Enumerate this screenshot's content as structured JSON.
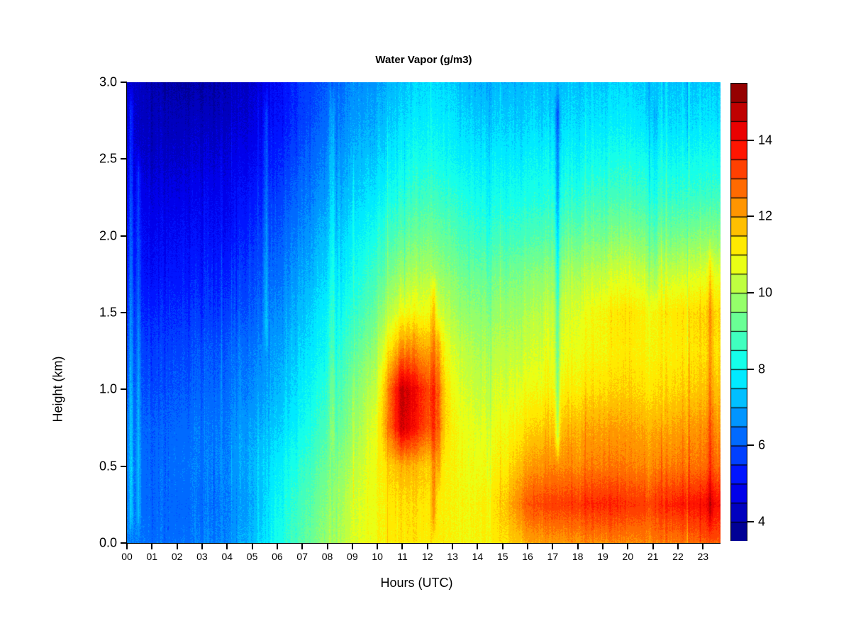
{
  "title": "Water Vapor (g/m3)",
  "x_axis": {
    "title": "Hours (UTC)",
    "tick_labels": [
      "00",
      "01",
      "02",
      "03",
      "04",
      "05",
      "06",
      "07",
      "08",
      "09",
      "10",
      "11",
      "12",
      "13",
      "14",
      "15",
      "16",
      "17",
      "18",
      "19",
      "20",
      "21",
      "22",
      "23"
    ]
  },
  "y_axis": {
    "title": "Height (km)",
    "tick_labels": [
      "0.0",
      "0.5",
      "1.0",
      "1.5",
      "2.0",
      "2.5",
      "3.0"
    ]
  },
  "colorbar": {
    "tick_labels": [
      "4",
      "6",
      "8",
      "10",
      "12",
      "14"
    ],
    "min": 3.5,
    "max": 15.5,
    "step": 0.5,
    "colormap": "jet",
    "border_color": "#000000"
  },
  "chart_data": {
    "type": "heatmap",
    "title": "Water Vapor (g/m3)",
    "xlabel": "Hours (UTC)",
    "ylabel": "Height (km)",
    "x_range_hours": [
      0,
      23.7
    ],
    "y_range_km": [
      0,
      3
    ],
    "value_range": [
      3.5,
      15.5
    ],
    "value_bin_size": 0.5,
    "colormap": "jet",
    "grid": false,
    "legend_position": "right-colorbar",
    "hours": [
      0,
      1,
      2,
      3,
      4,
      5,
      6,
      7,
      8,
      9,
      10,
      11,
      12,
      13,
      14,
      15,
      16,
      17,
      18,
      19,
      20,
      21,
      22,
      23,
      24
    ],
    "heights_km": [
      0,
      0.25,
      0.5,
      0.75,
      1.0,
      1.25,
      1.5,
      1.75,
      2.0,
      2.25,
      2.5,
      2.75,
      3.0
    ],
    "values_g_m3": [
      [
        6.5,
        6.3,
        6.3,
        6.4,
        6.6,
        7.2,
        8.2,
        9.0,
        9.8,
        10.4,
        11.0,
        11.3,
        11.2,
        11.0,
        11.0,
        11.3,
        12.0,
        12.2,
        12.3,
        12.4,
        12.4,
        12.5,
        12.6,
        12.9,
        13.2
      ],
      [
        6.3,
        6.2,
        6.2,
        6.3,
        6.5,
        7.0,
        8.0,
        8.8,
        9.6,
        10.3,
        11.0,
        11.4,
        11.3,
        11.0,
        11.0,
        11.5,
        13.0,
        13.3,
        13.4,
        13.6,
        13.4,
        13.3,
        13.7,
        13.9,
        14.1
      ],
      [
        6.3,
        6.2,
        6.3,
        6.4,
        6.6,
        7.1,
        7.8,
        8.5,
        9.3,
        10.0,
        11.0,
        12.0,
        11.6,
        11.0,
        10.8,
        11.1,
        12.1,
        12.4,
        12.4,
        12.6,
        12.5,
        12.4,
        12.6,
        12.7,
        12.9
      ],
      [
        6.2,
        6.1,
        6.2,
        6.3,
        6.5,
        6.9,
        7.4,
        8.1,
        8.9,
        9.6,
        10.9,
        14.6,
        13.1,
        11.0,
        10.6,
        10.8,
        11.4,
        11.7,
        11.9,
        12.1,
        12.1,
        11.9,
        12.1,
        12.3,
        12.5
      ],
      [
        6.0,
        5.9,
        6.0,
        6.1,
        6.3,
        6.6,
        7.1,
        7.8,
        8.6,
        9.3,
        10.5,
        14.8,
        13.3,
        10.8,
        10.3,
        10.5,
        10.8,
        11.0,
        11.2,
        11.4,
        11.5,
        11.3,
        11.5,
        11.7,
        11.9
      ],
      [
        5.8,
        5.7,
        5.8,
        5.9,
        6.1,
        6.4,
        6.9,
        7.5,
        8.2,
        8.9,
        10.0,
        12.6,
        12.1,
        10.5,
        10.0,
        10.2,
        10.4,
        10.6,
        10.8,
        11.0,
        11.2,
        11.0,
        11.2,
        11.4,
        11.5
      ],
      [
        5.5,
        5.4,
        5.5,
        5.6,
        5.7,
        6.1,
        6.6,
        7.2,
        8.0,
        8.4,
        9.4,
        10.9,
        10.9,
        10.0,
        9.6,
        9.8,
        10.0,
        10.3,
        10.6,
        11.0,
        11.3,
        11.0,
        11.3,
        11.5,
        11.6
      ],
      [
        5.2,
        5.1,
        5.2,
        5.3,
        5.4,
        5.8,
        6.3,
        6.9,
        7.6,
        8.0,
        8.9,
        9.9,
        10.1,
        9.5,
        9.2,
        9.3,
        9.5,
        9.7,
        10.0,
        10.3,
        10.5,
        10.2,
        10.4,
        10.6,
        10.8
      ],
      [
        5.0,
        4.9,
        5.0,
        5.0,
        5.1,
        5.5,
        6.0,
        6.6,
        7.3,
        7.7,
        8.4,
        9.1,
        9.4,
        9.0,
        8.6,
        8.7,
        8.8,
        9.0,
        9.2,
        9.4,
        9.6,
        9.3,
        9.4,
        9.6,
        9.7
      ],
      [
        4.8,
        4.7,
        4.7,
        4.8,
        4.9,
        5.2,
        5.7,
        6.3,
        6.9,
        7.3,
        7.9,
        8.5,
        8.8,
        8.5,
        8.2,
        8.2,
        8.3,
        8.4,
        8.5,
        8.7,
        8.8,
        8.6,
        8.6,
        8.7,
        8.8
      ],
      [
        4.5,
        4.4,
        4.4,
        4.5,
        4.6,
        4.9,
        5.4,
        6.0,
        6.6,
        7.0,
        7.5,
        8.0,
        8.3,
        8.0,
        7.8,
        7.8,
        7.9,
        8.0,
        8.0,
        8.2,
        8.3,
        8.1,
        8.1,
        8.2,
        8.2
      ],
      [
        4.4,
        4.2,
        4.2,
        4.2,
        4.3,
        4.6,
        5.1,
        5.7,
        6.3,
        6.7,
        7.1,
        7.6,
        7.9,
        7.7,
        7.4,
        7.4,
        7.5,
        7.5,
        7.6,
        7.7,
        7.8,
        7.6,
        7.6,
        7.7,
        7.7
      ],
      [
        4.5,
        4.1,
        3.9,
        3.9,
        4.1,
        4.4,
        5.0,
        5.6,
        6.1,
        6.5,
        6.9,
        7.3,
        7.6,
        7.4,
        7.1,
        7.1,
        7.2,
        7.2,
        7.3,
        7.4,
        7.5,
        7.3,
        7.3,
        7.4,
        7.4
      ]
    ],
    "streaks": [
      {
        "hour": 0.15,
        "amplitude": 1.2,
        "h_min": 0.0,
        "h_max": 3.0
      },
      {
        "hour": 0.45,
        "amplitude": 0.9,
        "h_min": 0.0,
        "h_max": 2.6
      },
      {
        "hour": 5.55,
        "amplitude": 0.8,
        "h_min": 1.2,
        "h_max": 3.0
      },
      {
        "hour": 8.2,
        "amplitude": 0.7,
        "h_min": 0.5,
        "h_max": 3.0
      },
      {
        "hour": 12.25,
        "amplitude": 1.1,
        "h_min": 0.0,
        "h_max": 1.8
      },
      {
        "hour": 12.45,
        "amplitude": 0.8,
        "h_min": 0.3,
        "h_max": 1.5
      },
      {
        "hour": 17.2,
        "amplitude": -1.4,
        "h_min": 0.5,
        "h_max": 3.0
      },
      {
        "hour": 21.1,
        "amplitude": -0.5,
        "h_min": 1.5,
        "h_max": 3.0
      },
      {
        "hour": 23.3,
        "amplitude": 0.8,
        "h_min": 0.0,
        "h_max": 2.0
      }
    ],
    "texture": {
      "seed": 42,
      "column_noise_amplitude": 0.42,
      "spike_probability": 0.07,
      "spike_amplitude": 1.0,
      "fine_noise_amplitude": 0.22,
      "streak_width_hours": 0.09
    }
  }
}
